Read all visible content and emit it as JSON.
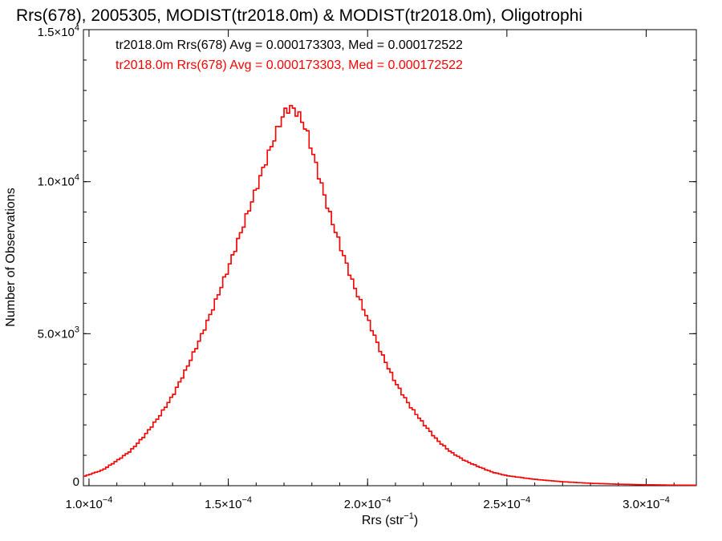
{
  "chart_data": {
    "type": "histogram",
    "title": "Rrs(678), 2005305, MODIST(tr2018.0m) & MODIST(tr2018.0m), Oligotrophi",
    "xlabel": {
      "text": "Rrs (str",
      "sup": "−1",
      "tail": ")"
    },
    "ylabel": "Number of Observations",
    "xlim": [
      9.8e-05,
      0.000318
    ],
    "ylim": [
      0,
      15000
    ],
    "x_ticks": [
      {
        "value": 0.0001,
        "mant": "1.0×10",
        "exp": "−4"
      },
      {
        "value": 0.00015,
        "mant": "1.5×10",
        "exp": "−4"
      },
      {
        "value": 0.0002,
        "mant": "2.0×10",
        "exp": "−4"
      },
      {
        "value": 0.00025,
        "mant": "2.5×10",
        "exp": "−4"
      },
      {
        "value": 0.0003,
        "mant": "3.0×10",
        "exp": "−4"
      }
    ],
    "y_ticks": [
      {
        "value": 0,
        "mant": "0",
        "exp": ""
      },
      {
        "value": 5000,
        "mant": "5.0×10",
        "exp": "3"
      },
      {
        "value": 10000,
        "mant": "1.0×10",
        "exp": "4"
      },
      {
        "value": 15000,
        "mant": "1.5×10",
        "exp": "4"
      }
    ],
    "annotations": [
      {
        "text": "tr2018.0m Rrs(678) Avg = 0.000173303, Med = 0.000172522",
        "color": "#000000"
      },
      {
        "text": "tr2018.0m Rrs(678) Avg = 0.000173303, Med = 0.000172522",
        "color": "#ff0000"
      }
    ],
    "series": [
      {
        "name": "tr2018.0m",
        "color": "#000000",
        "x": [
          9.8e-05,
          0.000105,
          0.00011,
          0.000115,
          0.00012,
          0.000125,
          0.00013,
          0.000135,
          0.00014,
          0.000145,
          0.00015,
          0.000155,
          0.00016,
          0.000163,
          0.000166,
          0.000168,
          0.00017,
          0.000172,
          0.000174,
          0.000176,
          0.000178,
          0.00018,
          0.000183,
          0.000186,
          0.00019,
          0.000195,
          0.0002,
          0.000205,
          0.00021,
          0.000215,
          0.00022,
          0.000225,
          0.00023,
          0.000235,
          0.00024,
          0.000245,
          0.00025,
          0.00026,
          0.00027,
          0.00028,
          0.00029,
          0.0003,
          0.00031,
          0.000318
        ],
        "values": [
          300,
          520,
          820,
          1150,
          1650,
          2250,
          2950,
          3850,
          4850,
          5950,
          7150,
          8450,
          9750,
          10550,
          11300,
          11800,
          12250,
          12450,
          12350,
          12100,
          11700,
          11050,
          10050,
          9050,
          7950,
          6600,
          5500,
          4350,
          3400,
          2650,
          2050,
          1500,
          1100,
          820,
          620,
          440,
          330,
          210,
          130,
          80,
          50,
          30,
          20,
          15
        ]
      },
      {
        "name": "tr2018.0m",
        "color": "#ff0000",
        "x": [
          9.8e-05,
          0.000105,
          0.00011,
          0.000115,
          0.00012,
          0.000125,
          0.00013,
          0.000135,
          0.00014,
          0.000145,
          0.00015,
          0.000155,
          0.00016,
          0.000163,
          0.000166,
          0.000168,
          0.00017,
          0.000172,
          0.000174,
          0.000176,
          0.000178,
          0.00018,
          0.000183,
          0.000186,
          0.00019,
          0.000195,
          0.0002,
          0.000205,
          0.00021,
          0.000215,
          0.00022,
          0.000225,
          0.00023,
          0.000235,
          0.00024,
          0.000245,
          0.00025,
          0.00026,
          0.00027,
          0.00028,
          0.00029,
          0.0003,
          0.00031,
          0.000318
        ],
        "values": [
          300,
          520,
          820,
          1150,
          1650,
          2250,
          2950,
          3850,
          4850,
          5950,
          7150,
          8450,
          9750,
          10550,
          11300,
          11800,
          12250,
          12450,
          12350,
          12100,
          11700,
          11050,
          10050,
          9050,
          7950,
          6600,
          5500,
          4350,
          3400,
          2650,
          2050,
          1500,
          1100,
          820,
          620,
          440,
          330,
          210,
          130,
          80,
          50,
          30,
          20,
          15
        ]
      }
    ],
    "grid": false,
    "legend": "none"
  }
}
